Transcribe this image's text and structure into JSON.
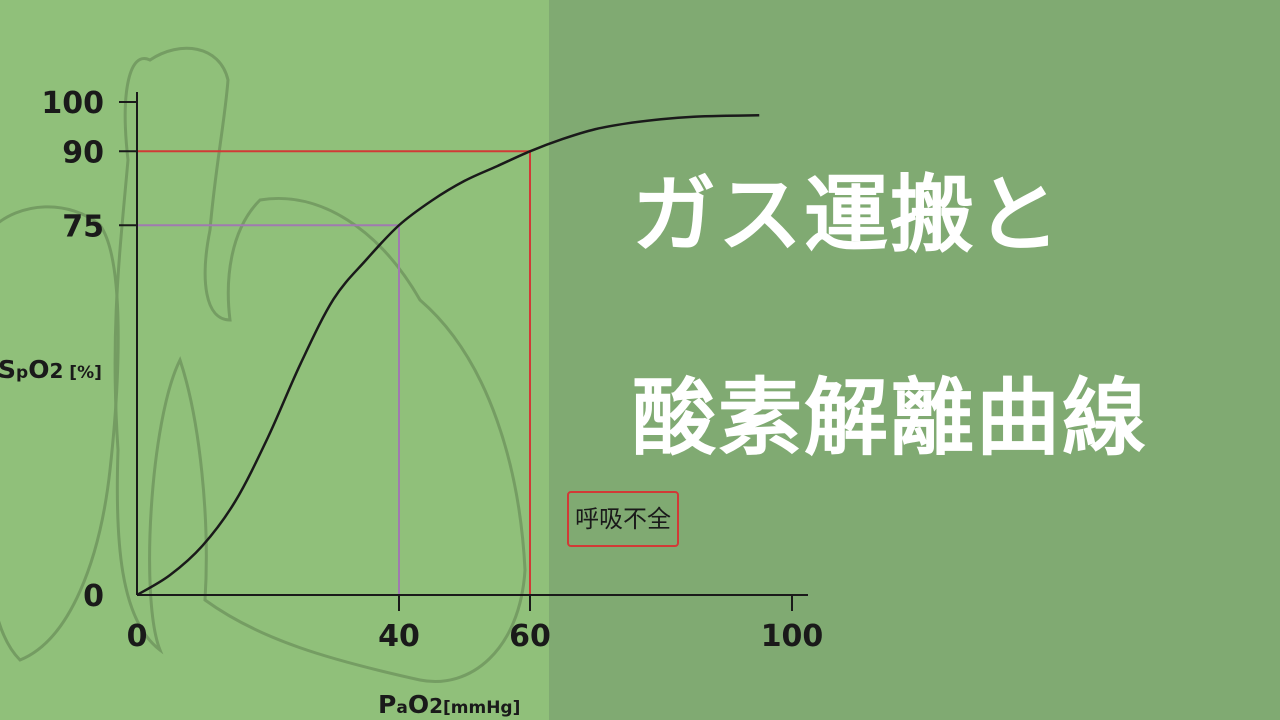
{
  "title": {
    "line1": "ガス運搬と",
    "line2": "酸素解離曲線"
  },
  "annotation": "呼吸不全",
  "colors": {
    "curve": "#1a1a1a",
    "red_guide": "#d13a36",
    "purple_guide": "#a07ab0",
    "bg_left": "#90c07a",
    "bg_right": "#80aa72",
    "title": "#ffffff"
  },
  "chart_data": {
    "type": "line",
    "xlabel_parts": [
      "P",
      "a",
      "O",
      "2",
      "[mmHg]"
    ],
    "ylabel_parts": [
      "S",
      "p",
      "O",
      "2",
      " [%]"
    ],
    "xlim": [
      0,
      100
    ],
    "ylim": [
      0,
      100
    ],
    "x_ticks": [
      0,
      40,
      60,
      100
    ],
    "y_ticks": [
      0,
      75,
      90,
      100
    ],
    "curve": {
      "x": [
        0,
        5,
        10,
        15,
        20,
        25,
        30,
        35,
        40,
        45,
        50,
        55,
        60,
        65,
        70,
        75,
        80,
        85,
        90,
        95
      ],
      "y": [
        0,
        4,
        10,
        19,
        32,
        47,
        60,
        68,
        75,
        80,
        84,
        87,
        90,
        92.5,
        94.5,
        95.7,
        96.5,
        97,
        97.2,
        97.3
      ]
    },
    "guides": [
      {
        "x": 40,
        "y": 75,
        "color": "purple"
      },
      {
        "x": 60,
        "y": 90,
        "color": "red"
      }
    ]
  }
}
